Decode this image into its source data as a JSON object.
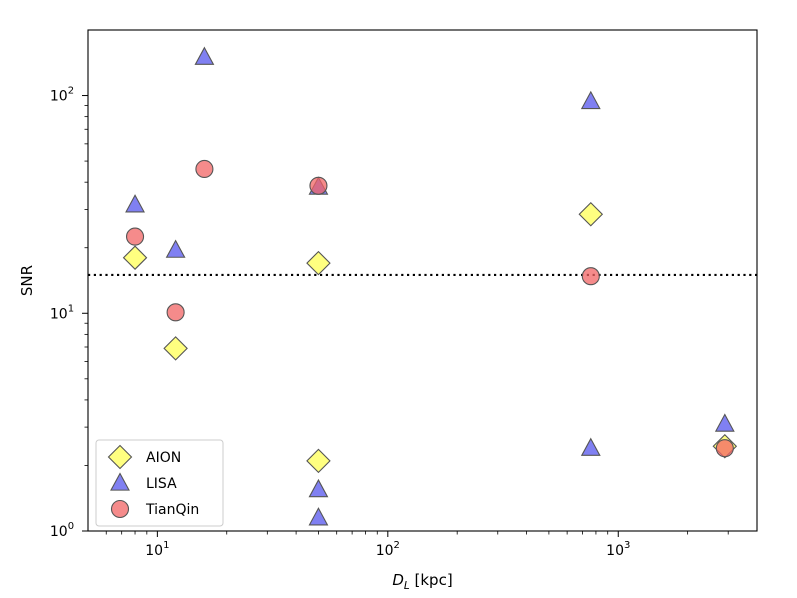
{
  "chart_data": {
    "type": "scatter",
    "xscale": "log",
    "yscale": "log",
    "xlabel_symbol": "D",
    "xlabel_subscript": "L",
    "xlabel_unit": "[kpc]",
    "ylabel": "SNR",
    "xlim": [
      5,
      4000
    ],
    "ylim": [
      1,
      200
    ],
    "x_ticks": [
      {
        "value": 10,
        "base": "10",
        "exp": "1"
      },
      {
        "value": 100,
        "base": "10",
        "exp": "2"
      },
      {
        "value": 1000,
        "base": "10",
        "exp": "3"
      }
    ],
    "y_ticks": [
      {
        "value": 1,
        "base": "10",
        "exp": "0"
      },
      {
        "value": 10,
        "base": "10",
        "exp": "1"
      },
      {
        "value": 100,
        "base": "10",
        "exp": "2"
      }
    ],
    "threshold": 15,
    "legend_position": "lower-left",
    "series": [
      {
        "name": "AION",
        "marker": "diamond",
        "color": "#ffff55",
        "points": [
          [
            8,
            18
          ],
          [
            12,
            6.9
          ],
          [
            50,
            17
          ],
          [
            50,
            2.1
          ],
          [
            760,
            28.5
          ],
          [
            2900,
            2.45
          ]
        ]
      },
      {
        "name": "LISA",
        "marker": "triangle",
        "color": "#5555ee",
        "points": [
          [
            8,
            31.5
          ],
          [
            12,
            19.5
          ],
          [
            16,
            150
          ],
          [
            50,
            38
          ],
          [
            50,
            1.55
          ],
          [
            50,
            1.15
          ],
          [
            760,
            94
          ],
          [
            760,
            2.4
          ],
          [
            2900,
            3.1
          ]
        ]
      },
      {
        "name": "TianQin",
        "marker": "circle",
        "color": "#f26464",
        "points": [
          [
            8,
            22.5
          ],
          [
            12,
            10.1
          ],
          [
            16,
            46
          ],
          [
            50,
            38.5
          ],
          [
            760,
            14.8
          ],
          [
            2900,
            2.4
          ]
        ]
      }
    ]
  }
}
